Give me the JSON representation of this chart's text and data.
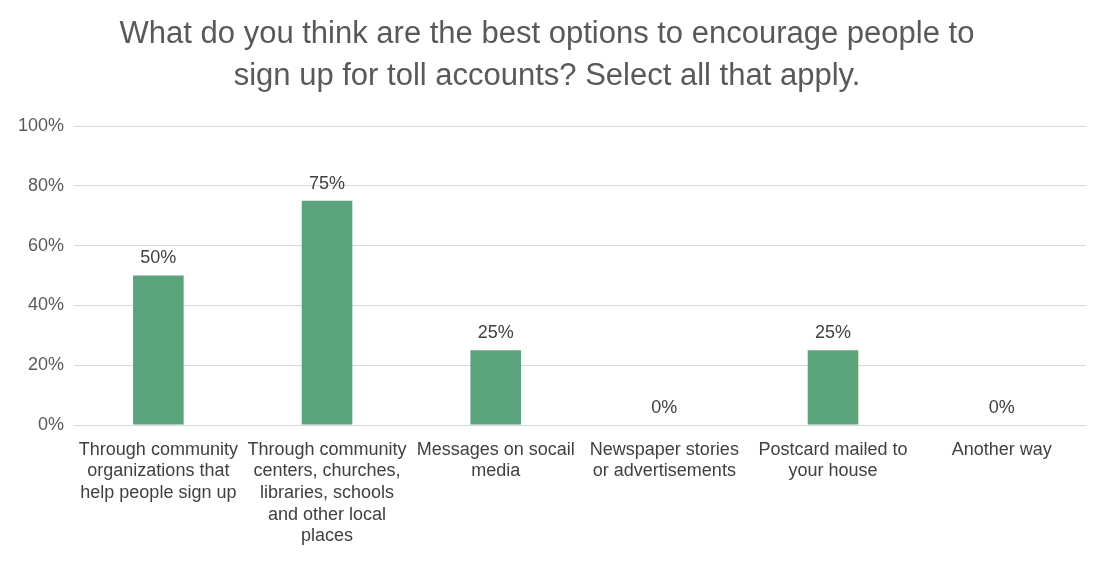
{
  "chart_data": {
    "type": "bar",
    "title": "What do you think are the best options to encourage people to sign up for toll accounts? Select all that apply.",
    "categories": [
      "Through community organizations that help people sign up",
      "Through community centers, churches, libraries, schools and other local places",
      "Messages on socail media",
      "Newspaper stories or advertisements",
      "Postcard mailed to your house",
      "Another way"
    ],
    "values": [
      50,
      75,
      25,
      0,
      25,
      0
    ],
    "value_labels": [
      "50%",
      "75%",
      "25%",
      "0%",
      "25%",
      "0%"
    ],
    "color": "#5ba37a",
    "ylim": [
      0,
      100
    ],
    "yticks": [
      {
        "value": 0,
        "label": "0%"
      },
      {
        "value": 20,
        "label": "20%"
      },
      {
        "value": 40,
        "label": "40%"
      },
      {
        "value": 60,
        "label": "60%"
      },
      {
        "value": 80,
        "label": "80%"
      },
      {
        "value": 100,
        "label": "100%"
      }
    ],
    "grid": "y",
    "legend": false
  }
}
